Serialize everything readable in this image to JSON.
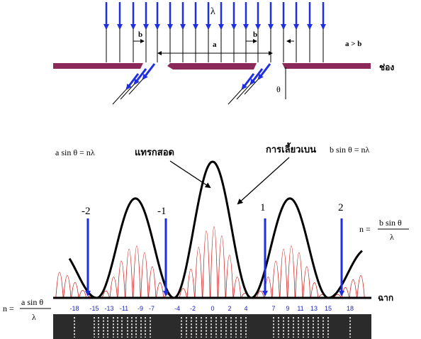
{
  "colors": {
    "arrow": "#1f2ee0",
    "barrier": "#8b2a5a",
    "fringes": "#d11a1a",
    "envelope": "#000000",
    "ticks": "#1a22b8",
    "film": "#2b2b2b",
    "spots": "#ffffff"
  },
  "diagram": {
    "lambda": "λ",
    "b_label": "b",
    "a_label": "a",
    "condition": "a > b",
    "slit_label": "ช่อง",
    "theta": "θ"
  },
  "pattern": {
    "formula_a": "a sin θ = nλ",
    "interference_label": "แทรกสอด",
    "diffraction_label": "การเลี้ยวเบน",
    "formula_b": "b sin θ = nλ",
    "orders": [
      "-2",
      "-1",
      "1",
      "2"
    ],
    "n_right_lhs": "n =",
    "n_right_num": "b sin θ",
    "n_right_den": "λ",
    "n_left_lhs": "n =",
    "n_left_num": "a sin θ",
    "n_left_den": "λ",
    "screen_label": "ฉาก",
    "ticks": [
      "-18",
      "-15",
      "-13",
      "-11",
      "-9",
      "-7",
      "-4",
      "-2",
      "0",
      "2",
      "4",
      "7",
      "9",
      "11",
      "13",
      "15",
      "18"
    ],
    "envelope_lobe_count": 5,
    "fringe_count": 37
  }
}
